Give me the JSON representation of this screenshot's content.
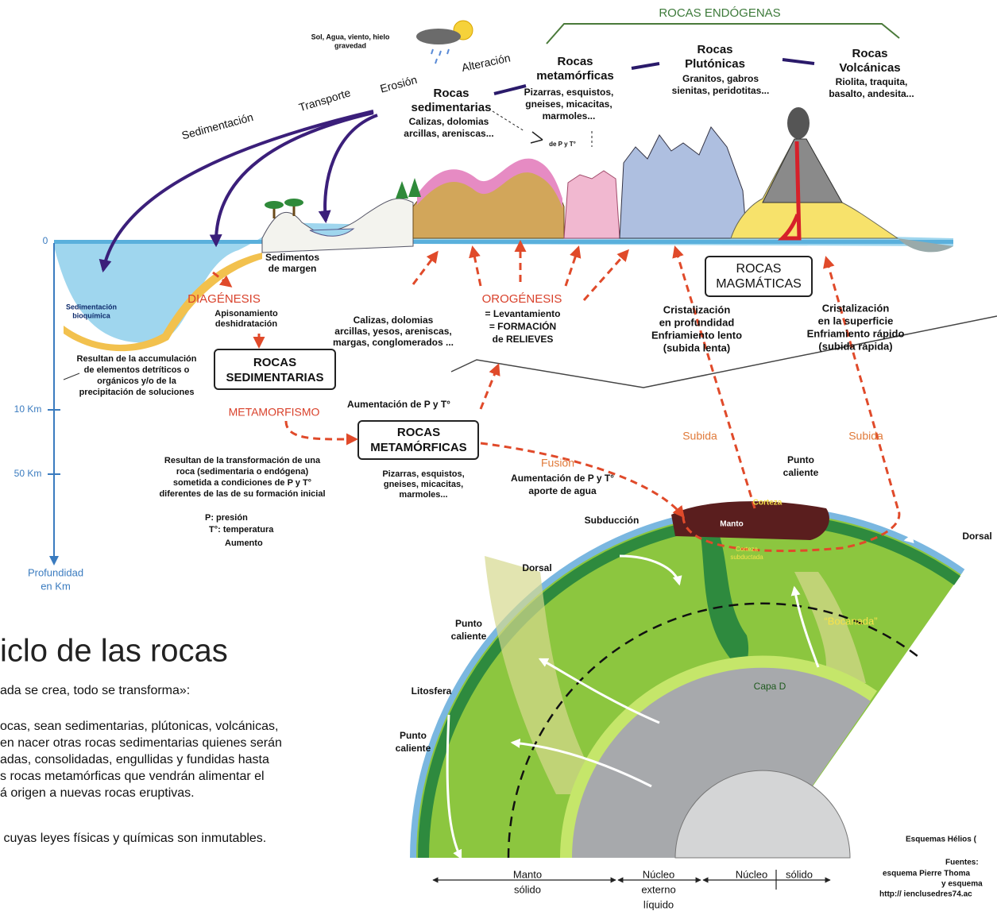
{
  "header": {
    "endogenous_rocks": "ROCAS ENDÓGENAS",
    "weather": [
      "Sol, Agua, viento, hielo",
      "gravedad"
    ]
  },
  "processes": {
    "alteration": "Alteración",
    "erosion": "Erosión",
    "transport": "Transporte",
    "sedimentation": "Sedimentación"
  },
  "rock_groups": [
    {
      "name": [
        "Rocas",
        "sedimentarias"
      ],
      "examples": [
        "Calizas, dolomias",
        "arcillas, areniscas..."
      ]
    },
    {
      "name": [
        "Rocas",
        "metamórficas"
      ],
      "examples": [
        "Pizarras, esquistos,",
        "gneises, micacitas,",
        "marmoles..."
      ]
    },
    {
      "name": [
        "Rocas",
        "Plutónicas"
      ],
      "examples": [
        "Granitos, gabros",
        "sienitas, peridotitas..."
      ]
    },
    {
      "name": [
        "Rocas",
        "Volcánicas"
      ],
      "examples": [
        "Riolita, traquita,",
        "basalto, andesita..."
      ]
    }
  ],
  "pt_note": "de P y T°",
  "depth_axis": {
    "ticks": [
      "0",
      "10 Km",
      "50 Km"
    ],
    "label": [
      "Profundidad",
      "en Km"
    ]
  },
  "section": {
    "margin_sediments": [
      "Sedimentos",
      "de margen"
    ],
    "biochemical": [
      "Sedimentación",
      "bioquímica"
    ],
    "diagenesis": "DIAGÉNESIS",
    "diagenesis_detail": [
      "Apisonamiento",
      "deshidratación"
    ],
    "sedimentary_examples": [
      "Calizas, dolomias",
      "arcillas, yesos, areniscas,",
      "margas, conglomerados ..."
    ],
    "orogenesis": "OROGÉNESIS",
    "orogenesis_detail": [
      "= Levantamiento",
      "= FORMACIÓN",
      "de RELIEVES"
    ],
    "magmatic_box": [
      "ROCAS",
      "MAGMÁTICAS"
    ],
    "deep_crystallization": [
      "Cristalización",
      "en profundidad",
      "Enfriamiento lento",
      "(subida lenta)"
    ],
    "surface_crystallization": [
      "Cristalización",
      "en la superficie",
      "Enfriamiento rápido",
      "(subida rápida)"
    ],
    "sedimentary_origin": [
      "Resultan de la accumulación",
      "de elementos detríticos o",
      "orgánicos y/o de la",
      "precipitación de soluciones"
    ],
    "sedimentary_box": [
      "ROCAS",
      "SEDIMENTARIAS"
    ],
    "metamorphism": "METAMORFISMO",
    "pt_increase": "Aumentación de P y T°",
    "metamorphic_box": [
      "ROCAS",
      "METAMÓRFICAS"
    ],
    "rise_left": "Subida",
    "rise_right": "Subida",
    "metamorphic_origin": [
      "Resultan de la transformación de una",
      "roca (sedimentaria o endógena)",
      "sometida a condiciones de P y T°",
      "diferentes de las de su formación inicial"
    ],
    "metamorphic_examples": [
      "Pizarras, esquistos,",
      "gneises, micacitas,",
      "marmoles..."
    ],
    "fusion": "Fusión",
    "fusion_detail": [
      "Aumentación de P y T°",
      "aporte de agua"
    ],
    "legend": [
      "P: presión",
      "T°: temperatura",
      "Aumento"
    ]
  },
  "globe": {
    "hotspot_top": [
      "Punto",
      "caliente"
    ],
    "crust": "Corteza",
    "mantle": "Manto",
    "subduction": "Subducción",
    "ridge_right": "Dorsal",
    "ridge_left": "Dorsal",
    "subducted_crust": [
      "Corteza",
      "subductada"
    ],
    "plume": "“Bocanada”",
    "hotspot_mid": [
      "Punto",
      "caliente"
    ],
    "lithosphere": "Litosfera",
    "hotspot_low": [
      "Punto",
      "caliente"
    ],
    "layer_d": "Capa D",
    "solid_mantle": [
      "Manto",
      "sólido"
    ],
    "outer_core": [
      "Núcleo",
      "externo",
      "líquido"
    ],
    "inner_core": [
      "Núcleo",
      "sólido"
    ]
  },
  "text": {
    "title": "iclo de las rocas",
    "subtitle": "ada se crea, todo se transforma»:",
    "paragraph": [
      "ocas, sean sedimentarias, plútonicas, volcánicas,",
      "en nacer otras rocas sedimentarias quienes serán",
      "adas, consolidadas, engullidas y fundidas hasta",
      "s rocas metamórficas que vendrán alimentar el",
      "á origen a nuevas rocas eruptivas."
    ],
    "closing": " cuyas leyes físicas y químicas son inmutables."
  },
  "credits": {
    "schemes": "Esquemas Hélios (",
    "sources": [
      "Fuentes:",
      "esquema Pierre Thoma",
      "y esquema",
      "http:// ienclusedres74.ac"
    ]
  }
}
